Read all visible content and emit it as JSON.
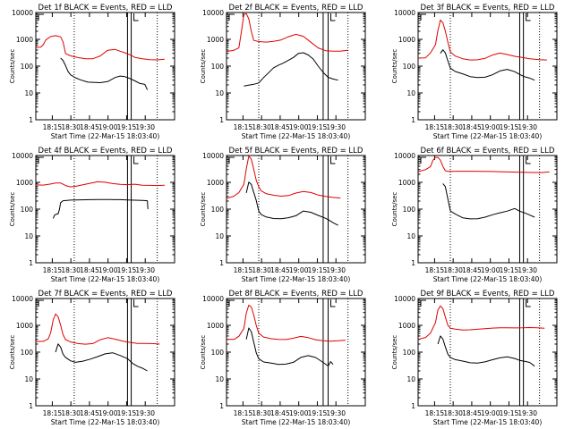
{
  "figure": {
    "ylabel": "Counts/sec",
    "xlabel": "Start Time (22-Mar-15 18:03:40)",
    "x_tick_labels": [
      "18:15",
      "18:30",
      "18:45",
      "19:00",
      "19:15",
      "19:30"
    ],
    "y_tick_labels": [
      "1",
      "10",
      "100",
      "1000",
      "10000"
    ]
  },
  "colors": {
    "events": "#000000",
    "lld": "#e00000"
  },
  "chart_data": [
    {
      "type": "line",
      "title": "Det 1f BLACK = Events, RED = LLD",
      "xlim_minutes": [
        -2,
        110
      ],
      "ylim": [
        1,
        10000
      ],
      "yscale": "log",
      "x_ticks": [
        11.3,
        26.3,
        41.3,
        56.3,
        71.3,
        86.3
      ],
      "dotted_vlines": [
        29,
        96
      ],
      "solid_vlines": [
        72,
        75
      ],
      "series": [
        {
          "name": "LLD",
          "color": "#e00000",
          "x": [
            -2,
            2,
            4,
            6,
            10,
            14,
            18,
            20,
            22,
            26,
            32,
            38,
            44,
            50,
            56,
            62,
            66,
            70,
            74,
            78,
            84,
            90,
            96,
            102
          ],
          "y": [
            500,
            500,
            600,
            900,
            1200,
            1300,
            1200,
            800,
            300,
            250,
            220,
            200,
            200,
            250,
            400,
            420,
            350,
            300,
            250,
            200,
            180,
            170,
            170,
            180
          ]
        },
        {
          "name": "Events",
          "color": "#000000",
          "x": [
            18,
            20,
            22,
            24,
            26,
            30,
            34,
            40,
            46,
            50,
            56,
            62,
            66,
            70,
            74,
            78,
            82,
            86,
            88
          ],
          "y": [
            200,
            160,
            100,
            60,
            45,
            35,
            30,
            25,
            25,
            25,
            28,
            40,
            45,
            42,
            35,
            28,
            22,
            20,
            13
          ]
        }
      ]
    },
    {
      "type": "line",
      "title": "Det 2f BLACK = Events, RED = LLD",
      "xlim_minutes": [
        -2,
        110
      ],
      "ylim": [
        1,
        10000
      ],
      "yscale": "log",
      "x_ticks": [
        11.3,
        26.3,
        41.3,
        56.3,
        71.3,
        86.3
      ],
      "dotted_vlines": [
        24,
        96
      ],
      "solid_vlines": [
        76,
        80
      ],
      "series": [
        {
          "name": "LLD",
          "color": "#e00000",
          "x": [
            -2,
            4,
            8,
            10,
            12,
            14,
            16,
            18,
            20,
            24,
            30,
            36,
            42,
            48,
            54,
            60,
            66,
            72,
            78,
            84,
            90,
            96
          ],
          "y": [
            350,
            400,
            500,
            2000,
            9000,
            9500,
            6000,
            2000,
            900,
            800,
            750,
            800,
            900,
            1200,
            1500,
            1300,
            800,
            500,
            400,
            380,
            380,
            390
          ]
        },
        {
          "name": "Events",
          "color": "#000000",
          "x": [
            12,
            16,
            20,
            24,
            28,
            32,
            36,
            40,
            44,
            48,
            52,
            56,
            60,
            64,
            68,
            72,
            76,
            80,
            84,
            88
          ],
          "y": [
            18,
            20,
            22,
            25,
            40,
            60,
            90,
            110,
            130,
            160,
            200,
            280,
            300,
            250,
            180,
            100,
            60,
            40,
            35,
            30
          ]
        }
      ]
    },
    {
      "type": "line",
      "title": "Det 3f BLACK = Events, RED = LLD",
      "xlim_minutes": [
        -2,
        110
      ],
      "ylim": [
        1,
        10000
      ],
      "yscale": "log",
      "x_ticks": [
        11.3,
        26.3,
        41.3,
        56.3,
        71.3,
        86.3
      ],
      "dotted_vlines": [
        24,
        96
      ],
      "solid_vlines": [
        80,
        83
      ],
      "series": [
        {
          "name": "LLD",
          "color": "#e00000",
          "x": [
            -2,
            4,
            8,
            12,
            14,
            16,
            18,
            20,
            22,
            24,
            28,
            34,
            40,
            46,
            52,
            58,
            64,
            70,
            76,
            82,
            88,
            96,
            102
          ],
          "y": [
            200,
            200,
            300,
            600,
            2000,
            5000,
            4000,
            2000,
            800,
            350,
            250,
            200,
            180,
            180,
            200,
            260,
            300,
            260,
            220,
            200,
            180,
            170,
            170
          ]
        },
        {
          "name": "Events",
          "color": "#000000",
          "x": [
            16,
            18,
            20,
            22,
            24,
            28,
            34,
            40,
            46,
            52,
            58,
            64,
            70,
            76,
            80,
            84,
            88,
            92
          ],
          "y": [
            300,
            400,
            300,
            150,
            80,
            60,
            50,
            40,
            38,
            40,
            50,
            70,
            80,
            65,
            50,
            40,
            35,
            30
          ]
        }
      ]
    },
    {
      "type": "line",
      "title": "Det 4f BLACK = Events, RED = LLD",
      "xlim_minutes": [
        -2,
        110
      ],
      "ylim": [
        1,
        10000
      ],
      "yscale": "log",
      "x_ticks": [
        11.3,
        26.3,
        41.3,
        56.3,
        71.3,
        86.3
      ],
      "dotted_vlines": [
        29,
        96
      ],
      "solid_vlines": [
        72,
        75
      ],
      "series": [
        {
          "name": "LLD",
          "color": "#e00000",
          "x": [
            -2,
            4,
            10,
            14,
            18,
            22,
            26,
            30,
            36,
            42,
            48,
            54,
            60,
            66,
            72,
            78,
            84,
            90,
            96,
            102
          ],
          "y": [
            800,
            800,
            900,
            1000,
            1000,
            800,
            700,
            720,
            800,
            900,
            1000,
            950,
            850,
            800,
            800,
            850,
            800,
            800,
            800,
            780
          ]
        },
        {
          "name": "Events",
          "color": "#000000",
          "x": [
            12,
            13,
            14,
            15,
            16,
            17,
            18,
            20,
            26,
            34,
            42,
            50,
            58,
            66,
            72,
            78,
            84,
            88,
            88.5
          ],
          "y": [
            45,
            60,
            65,
            70,
            70,
            100,
            180,
            210,
            215,
            215,
            215,
            215,
            215,
            215,
            215,
            215,
            215,
            215,
            100
          ]
        }
      ]
    },
    {
      "type": "line",
      "title": "Det 5f BLACK = Events, RED = LLD",
      "xlim_minutes": [
        -2,
        110
      ],
      "ylim": [
        1,
        10000
      ],
      "yscale": "log",
      "x_ticks": [
        11.3,
        26.3,
        41.3,
        56.3,
        71.3,
        86.3
      ],
      "dotted_vlines": [
        24,
        96
      ],
      "solid_vlines": [
        76,
        80
      ],
      "series": [
        {
          "name": "LLD",
          "color": "#e00000",
          "x": [
            -2,
            4,
            8,
            12,
            14,
            16,
            18,
            20,
            22,
            24,
            26,
            30,
            36,
            42,
            48,
            54,
            60,
            66,
            72,
            78,
            84,
            90
          ],
          "y": [
            250,
            300,
            400,
            800,
            3000,
            9000,
            7000,
            3000,
            1200,
            700,
            500,
            400,
            350,
            320,
            330,
            400,
            450,
            400,
            320,
            280,
            260,
            260
          ]
        },
        {
          "name": "Events",
          "color": "#000000",
          "x": [
            14,
            16,
            18,
            20,
            22,
            24,
            26,
            30,
            36,
            42,
            48,
            54,
            60,
            66,
            72,
            76,
            80,
            84,
            88
          ],
          "y": [
            400,
            1000,
            800,
            400,
            200,
            80,
            60,
            50,
            45,
            45,
            50,
            60,
            90,
            80,
            60,
            50,
            40,
            30,
            25
          ]
        }
      ]
    },
    {
      "type": "line",
      "title": "Det 6f BLACK = Events, RED = LLD",
      "xlim_minutes": [
        -2,
        110
      ],
      "ylim": [
        1,
        10000
      ],
      "yscale": "log",
      "x_ticks": [
        11.3,
        26.3,
        41.3,
        56.3,
        71.3,
        86.3
      ],
      "dotted_vlines": [
        24,
        96
      ],
      "solid_vlines": [
        80,
        83
      ],
      "series": [
        {
          "name": "LLD",
          "color": "#e00000",
          "x": [
            -2,
            4,
            8,
            10,
            12,
            14,
            16,
            18,
            20,
            22,
            26,
            34,
            42,
            50,
            58,
            66,
            74,
            82,
            90,
            98,
            104
          ],
          "y": [
            2500,
            3000,
            4000,
            7000,
            9000,
            9000,
            7000,
            4000,
            2700,
            2500,
            2450,
            2450,
            2450,
            2450,
            2450,
            2450,
            2450,
            2450,
            2450,
            2450,
            2450
          ]
        },
        {
          "name": "Events",
          "color": "#000000",
          "x": [
            18,
            20,
            22,
            24,
            28,
            34,
            40,
            46,
            52,
            58,
            64,
            70,
            76,
            80,
            84,
            88,
            92
          ],
          "y": [
            900,
            700,
            250,
            90,
            70,
            50,
            45,
            45,
            50,
            60,
            70,
            80,
            100,
            80,
            70,
            60,
            50
          ]
        }
      ]
    },
    {
      "type": "line",
      "title": "Det 7f BLACK = Events, RED = LLD",
      "xlim_minutes": [
        -2,
        110
      ],
      "ylim": [
        1,
        10000
      ],
      "yscale": "log",
      "x_ticks": [
        11.3,
        26.3,
        41.3,
        56.3,
        71.3,
        86.3
      ],
      "dotted_vlines": [
        29,
        96
      ],
      "solid_vlines": [
        72,
        75
      ],
      "series": [
        {
          "name": "LLD",
          "color": "#e00000",
          "x": [
            -2,
            4,
            8,
            10,
            12,
            14,
            16,
            18,
            20,
            22,
            26,
            32,
            38,
            44,
            50,
            56,
            62,
            68,
            74,
            80,
            86,
            92,
            98
          ],
          "y": [
            250,
            250,
            300,
            500,
            1500,
            2500,
            2000,
            1000,
            450,
            300,
            250,
            220,
            210,
            220,
            300,
            350,
            300,
            250,
            220,
            200,
            200,
            200,
            200
          ]
        },
        {
          "name": "Events",
          "color": "#000000",
          "x": [
            14,
            16,
            18,
            20,
            22,
            26,
            30,
            36,
            42,
            48,
            54,
            60,
            66,
            72,
            76,
            80,
            84,
            88
          ],
          "y": [
            100,
            200,
            150,
            80,
            60,
            45,
            40,
            45,
            55,
            70,
            90,
            100,
            80,
            60,
            40,
            30,
            25,
            20
          ]
        }
      ]
    },
    {
      "type": "line",
      "title": "Det 8f BLACK = Events, RED = LLD",
      "xlim_minutes": [
        -2,
        110
      ],
      "ylim": [
        1,
        10000
      ],
      "yscale": "log",
      "x_ticks": [
        11.3,
        26.3,
        41.3,
        56.3,
        71.3,
        86.3
      ],
      "dotted_vlines": [
        24,
        96
      ],
      "solid_vlines": [
        76,
        80
      ],
      "series": [
        {
          "name": "LLD",
          "color": "#e00000",
          "x": [
            -2,
            4,
            8,
            12,
            14,
            16,
            18,
            20,
            22,
            24,
            28,
            34,
            40,
            46,
            52,
            58,
            64,
            70,
            76,
            82,
            88,
            94
          ],
          "y": [
            300,
            300,
            400,
            800,
            3000,
            6000,
            5000,
            2500,
            1000,
            500,
            350,
            300,
            280,
            280,
            320,
            380,
            350,
            300,
            280,
            270,
            280,
            280
          ]
        },
        {
          "name": "Events",
          "color": "#000000",
          "x": [
            14,
            16,
            18,
            20,
            22,
            24,
            28,
            34,
            40,
            46,
            52,
            58,
            64,
            70,
            76,
            80,
            82,
            84
          ],
          "y": [
            300,
            800,
            600,
            250,
            100,
            60,
            45,
            40,
            35,
            35,
            40,
            60,
            70,
            60,
            40,
            30,
            45,
            35
          ]
        }
      ]
    },
    {
      "type": "line",
      "title": "Det 9f BLACK = Events, RED = LLD",
      "xlim_minutes": [
        -2,
        110
      ],
      "ylim": [
        1,
        10000
      ],
      "yscale": "log",
      "x_ticks": [
        11.3,
        26.3,
        41.3,
        56.3,
        71.3,
        86.3
      ],
      "dotted_vlines": [
        24,
        96
      ],
      "solid_vlines": [
        80,
        83
      ],
      "series": [
        {
          "name": "LLD",
          "color": "#e00000",
          "x": [
            -2,
            4,
            8,
            12,
            14,
            16,
            18,
            20,
            22,
            24,
            28,
            34,
            40,
            46,
            52,
            58,
            64,
            70,
            76,
            82,
            88,
            94,
            100
          ],
          "y": [
            300,
            350,
            500,
            1200,
            3500,
            5000,
            4000,
            2000,
            1000,
            800,
            750,
            700,
            720,
            750,
            780,
            800,
            800,
            780,
            760,
            760,
            780,
            780,
            780
          ]
        },
        {
          "name": "Events",
          "color": "#000000",
          "x": [
            14,
            16,
            18,
            20,
            22,
            24,
            28,
            34,
            40,
            46,
            52,
            58,
            64,
            70,
            76,
            80,
            84,
            88,
            92
          ],
          "y": [
            200,
            400,
            300,
            150,
            80,
            60,
            50,
            45,
            40,
            40,
            45,
            55,
            65,
            70,
            60,
            50,
            45,
            40,
            30
          ]
        }
      ]
    }
  ]
}
